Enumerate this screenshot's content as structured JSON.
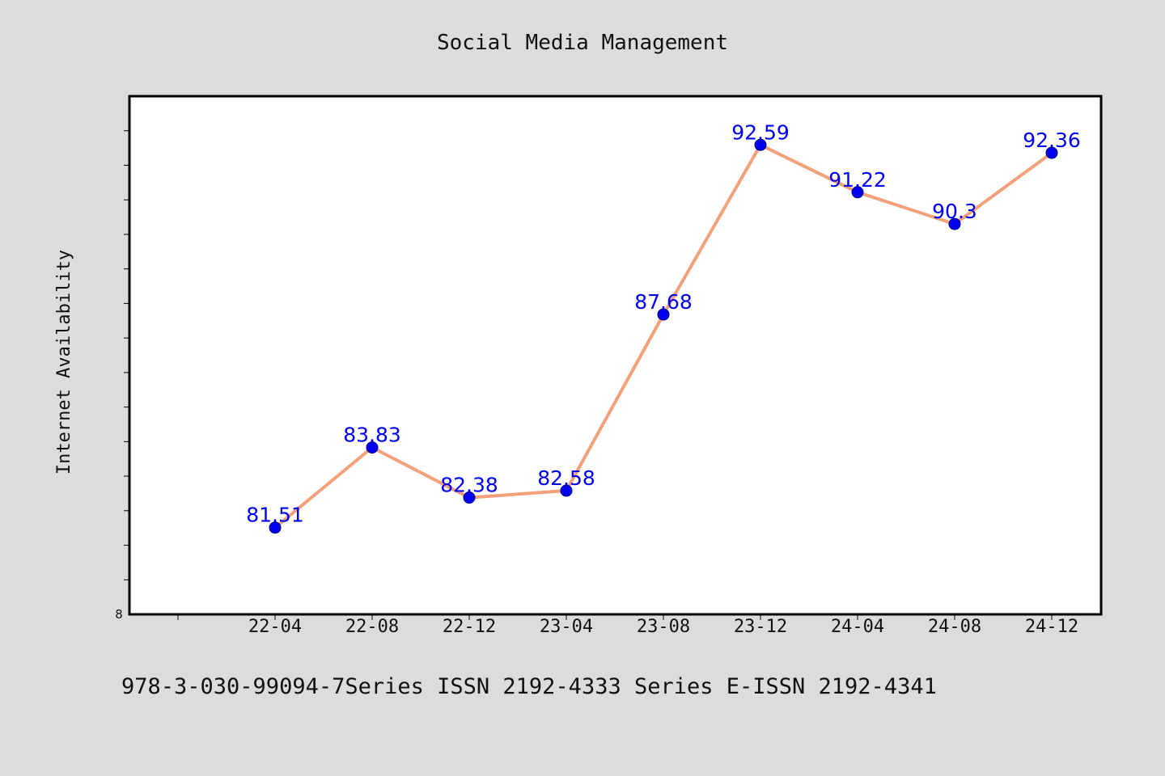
{
  "chart_data": {
    "type": "line",
    "title": "Social Media Management",
    "xlabel": "",
    "ylabel": "Internet Availability",
    "categories": [
      "22-04",
      "22-08",
      "22-12",
      "23-04",
      "23-08",
      "23-12",
      "24-04",
      "24-08",
      "24-12"
    ],
    "series": [
      {
        "values": [
          81.51,
          83.83,
          82.38,
          82.58,
          87.68,
          92.59,
          91.22,
          90.3,
          92.36
        ],
        "labels": [
          "81.51",
          "83.83",
          "82.38",
          "82.58",
          "87.68",
          "92.59",
          "91.22",
          "90.3",
          "92.36"
        ],
        "line_color": "#f4a07a",
        "marker_color": "#0000ee",
        "label_color": "#0000ee"
      }
    ],
    "ylim": [
      79.0,
      94.0
    ],
    "y_tick_label": "8",
    "grid": false,
    "legend": "none"
  },
  "footer_text": "978-3-030-99094-7Series ISSN 2192-4333 Series E-ISSN 2192-4341"
}
